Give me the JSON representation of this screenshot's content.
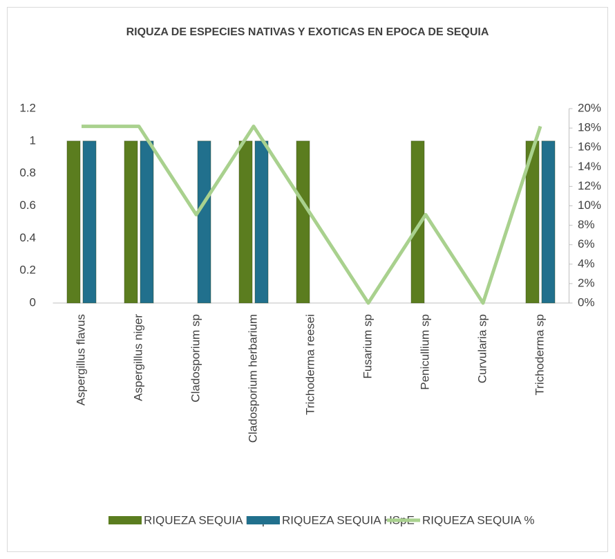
{
  "chart_data": {
    "type": "bar",
    "title": "RIQUZA DE ESPECIES NATIVAS Y EXOTICAS EN EPOCA DE SEQUIA",
    "categories": [
      "Aspergillus flavus",
      "Aspergillus niger",
      "Cladosporium sp",
      "Cladosporium herbarium",
      "Trichoderma reesei",
      "Fusarium sp",
      "Penicullium sp",
      "Curvularia sp",
      "Trichoderma sp"
    ],
    "series": [
      {
        "name": "RIQUEZA SEQUIA HSpN",
        "color": "#5b7d1f",
        "values": [
          1,
          1,
          0,
          1,
          1,
          0,
          1,
          0,
          1
        ]
      },
      {
        "name": "RIQUEZA SEQUIA HSpE",
        "color": "#21708d",
        "values": [
          1,
          1,
          1,
          1,
          0,
          0,
          0,
          0,
          1
        ]
      },
      {
        "name": "RIQUEZA SEQUIA %",
        "color": "#a9d18e",
        "type": "line",
        "axis": "y2",
        "values": [
          18.18,
          18.18,
          9.09,
          18.18,
          9.09,
          0,
          9.09,
          0,
          18.18
        ]
      }
    ],
    "ylim": [
      0,
      1.2
    ],
    "yticks": [
      0,
      0.2,
      0.4,
      0.6,
      0.8,
      1,
      1.2
    ],
    "y2lim": [
      0,
      20
    ],
    "y2ticks": [
      {
        "value": 0,
        "label": "0%"
      },
      {
        "value": 2,
        "label": "2%"
      },
      {
        "value": 4,
        "label": "4%"
      },
      {
        "value": 6,
        "label": "6%"
      },
      {
        "value": 8,
        "label": "8%"
      },
      {
        "value": 10,
        "label": "10%"
      },
      {
        "value": 12,
        "label": "12%"
      },
      {
        "value": 14,
        "label": "14%"
      },
      {
        "value": 16,
        "label": "16%"
      },
      {
        "value": 18,
        "label": "18%"
      },
      {
        "value": 20,
        "label": "20%"
      }
    ],
    "legend": "bottom"
  }
}
